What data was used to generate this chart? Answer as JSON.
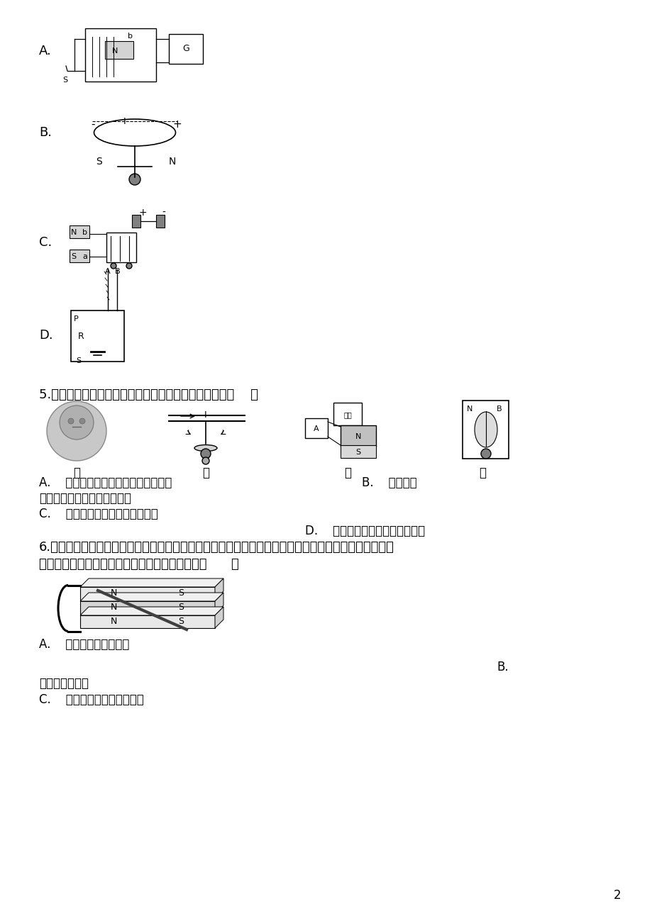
{
  "bg_color": "#ffffff",
  "page_number": "2",
  "diagrams_top_label_A": "A.",
  "diagrams_top_label_B": "B.",
  "diagrams_top_label_C": "C.",
  "diagrams_top_label_D": "D.",
  "q5_text": "5.如图是关于电磁现象的四个实验，下列说法正确的是（    ）",
  "labels_jia_yi_bing_ding": [
    "甲",
    "乙",
    "丙",
    "丁"
  ],
  "ans_A": "A.    图甲实验是研究同种电荷相互排斥",
  "ans_B": "B.    图乙实验",
  "ans_B2": "是研究通电导线周围存在磁场",
  "ans_C": "C.    图丙实验是研究电磁感应现象",
  "ans_D": "D.    图丁实验是研究电动机的原理",
  "q6_text1": "6.小乐在研究「磁场对通电导体作用」时采用如图所示实验，通电后发现导体棒向右摩动，要使通电导体",
  "q6_text2": "棒的悬线向右的摇角增大．以下操作中可行的是（      ）",
  "ans6_A": "A.    增大导体棒中的电流",
  "ans6_B": "B.",
  "ans6_B2": "减少磁鐵的数量",
  "ans6_C": "C.    颠倒磁鐵磁极的上下位置",
  "font_size_main": 13,
  "font_size_label": 13,
  "font_size_page": 12
}
